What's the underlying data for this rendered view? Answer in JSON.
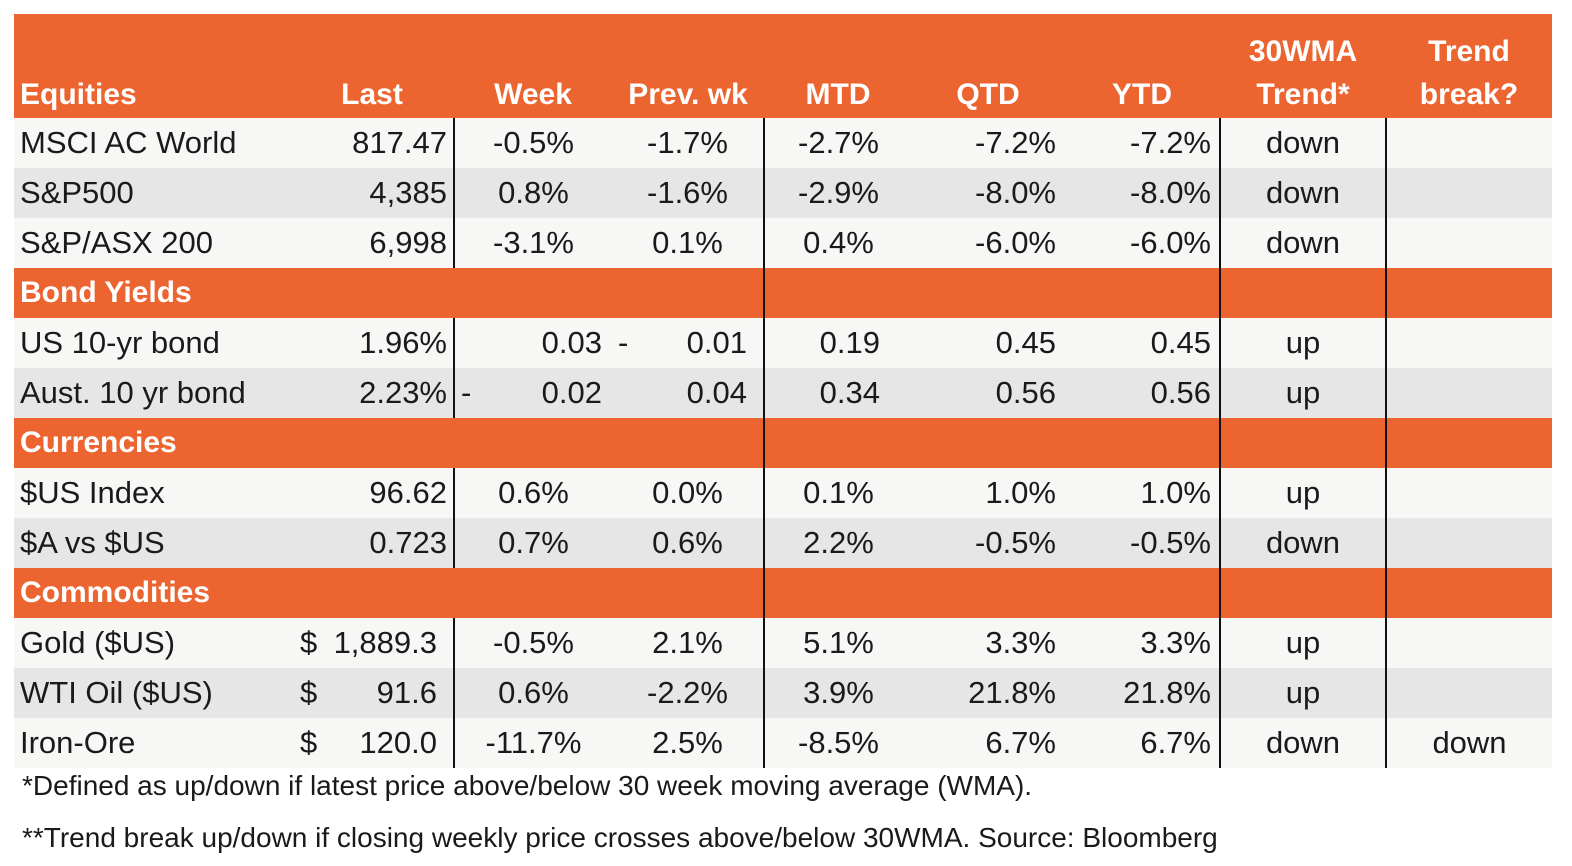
{
  "header": {
    "equities": "Equities",
    "last": "Last",
    "week": "Week",
    "prev_wk": "Prev. wk",
    "mtd": "MTD",
    "qtd": "QTD",
    "ytd": "YTD",
    "wma_line1": "30WMA",
    "wma_line2": "Trend*",
    "break_line1": "Trend",
    "break_line2": "break?"
  },
  "sections": {
    "bonds": "Bond Yields",
    "currencies": "Currencies",
    "commodities": "Commodities"
  },
  "rows": [
    {
      "name": "MSCI AC World",
      "last": "817.47",
      "week": "-0.5%",
      "prev": "-1.7%",
      "mtd": "-2.7%",
      "qtd": "-7.2%",
      "ytd": "-7.2%",
      "trend": "down",
      "break": ""
    },
    {
      "name": "S&P500",
      "last": "4,385",
      "week": "0.8%",
      "prev": "-1.6%",
      "mtd": "-2.9%",
      "qtd": "-8.0%",
      "ytd": "-8.0%",
      "trend": "down",
      "break": ""
    },
    {
      "name": "S&P/ASX 200",
      "last": "6,998",
      "week": "-3.1%",
      "prev": "0.1%",
      "mtd": "0.4%",
      "qtd": "-6.0%",
      "ytd": "-6.0%",
      "trend": "down",
      "break": ""
    },
    {
      "name": "US 10-yr bond",
      "last": "1.96%",
      "week": "0.03",
      "prev": "0.01",
      "prev_dash": "-",
      "mtd": "0.19",
      "qtd": "0.45",
      "ytd": "0.45",
      "trend": "up",
      "break": ""
    },
    {
      "name": "Aust. 10 yr bond",
      "last": "2.23%",
      "week": "0.02",
      "week_dash": "-",
      "prev": "0.04",
      "mtd": "0.34",
      "qtd": "0.56",
      "ytd": "0.56",
      "trend": "up",
      "break": ""
    },
    {
      "name": "$US Index",
      "last": "96.62",
      "week": "0.6%",
      "prev": "0.0%",
      "mtd": "0.1%",
      "qtd": "1.0%",
      "ytd": "1.0%",
      "trend": "up",
      "break": ""
    },
    {
      "name": "$A vs $US",
      "last": "0.723",
      "week": "0.7%",
      "prev": "0.6%",
      "mtd": "2.2%",
      "qtd": "-0.5%",
      "ytd": "-0.5%",
      "trend": "down",
      "break": ""
    },
    {
      "name": "Gold ($US)",
      "currency": "$",
      "last": "1,889.3",
      "week": "-0.5%",
      "prev": "2.1%",
      "mtd": "5.1%",
      "qtd": "3.3%",
      "ytd": "3.3%",
      "trend": "up",
      "break": ""
    },
    {
      "name": "WTI Oil ($US)",
      "currency": "$",
      "last": "91.6",
      "week": "0.6%",
      "prev": "-2.2%",
      "mtd": "3.9%",
      "qtd": "21.8%",
      "ytd": "21.8%",
      "trend": "up",
      "break": ""
    },
    {
      "name": "Iron-Ore",
      "currency": "$",
      "last": "120.0",
      "week": "-11.7%",
      "prev": "2.5%",
      "mtd": "-8.5%",
      "qtd": "6.7%",
      "ytd": "6.7%",
      "trend": "down",
      "break": "down"
    }
  ],
  "footnotes": {
    "note1": "*Defined as up/down if latest price above/below 30 week moving average (WMA).",
    "note2": "**Trend break up/down if closing weekly price crosses above/below 30WMA.  Source: Bloomberg"
  },
  "colors": {
    "accent": "#ec6530",
    "row_light": "#f7f7f5",
    "row_gray": "#e6e6e6"
  }
}
